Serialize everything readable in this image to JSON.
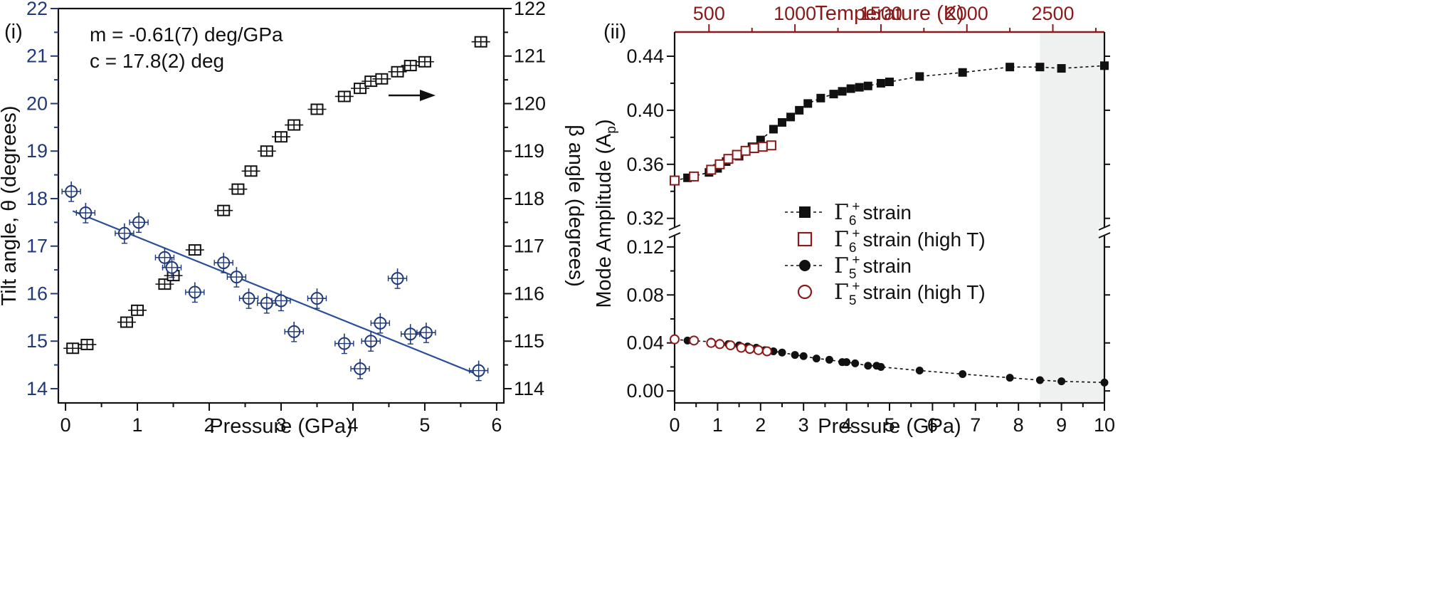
{
  "chart_data": [
    {
      "panel_label": "(i)",
      "type": "scatter",
      "xlabel": "Pressure (GPa)",
      "ylabel": "Tilt angle, θ (degrees)",
      "y2label": "β angle (degrees)",
      "xlim": [
        -0.1,
        6.1
      ],
      "ylim": [
        13.7,
        22
      ],
      "y2lim": [
        113.7,
        122
      ],
      "xticks": [
        "0",
        "1",
        "2",
        "3",
        "4",
        "5",
        "6"
      ],
      "yticks": [
        "14",
        "15",
        "16",
        "17",
        "18",
        "19",
        "20",
        "21",
        "22"
      ],
      "y2ticks": [
        "114",
        "115",
        "116",
        "117",
        "118",
        "119",
        "120",
        "121",
        "122"
      ],
      "annotations": [
        "m = -0.61(7) deg/GPa",
        "c = 17.8(2) deg"
      ],
      "colors": {
        "tilt": "#1f3a7a",
        "beta": "#111111",
        "fit": "#2a4f9a"
      },
      "series": [
        {
          "axis": "left",
          "x": [
            0.08,
            0.28,
            0.82,
            1.02,
            1.38,
            1.48,
            1.8,
            2.2,
            2.38,
            2.55,
            2.8,
            3.0,
            3.18,
            3.5,
            3.88,
            4.1,
            4.25,
            4.38,
            4.62,
            4.8,
            5.02,
            5.75
          ],
          "y": [
            18.15,
            17.7,
            17.27,
            17.5,
            16.76,
            16.55,
            16.03,
            16.65,
            16.35,
            15.9,
            15.8,
            15.85,
            15.2,
            15.9,
            14.95,
            14.42,
            15.0,
            15.38,
            16.32,
            15.15,
            15.18,
            14.38
          ]
        },
        {
          "axis": "right",
          "x": [
            0.1,
            0.3,
            0.85,
            1.0,
            1.38,
            1.5,
            1.8,
            2.2,
            2.4,
            2.58,
            2.8,
            3.0,
            3.18,
            3.5,
            3.88,
            4.1,
            4.25,
            4.4,
            4.62,
            4.8,
            5.0,
            5.78
          ],
          "y": [
            114.85,
            114.93,
            115.4,
            115.65,
            116.2,
            116.38,
            116.92,
            117.75,
            118.2,
            118.58,
            119.0,
            119.3,
            119.55,
            119.88,
            120.15,
            120.32,
            120.47,
            120.52,
            120.67,
            120.8,
            120.88,
            121.3
          ]
        },
        {
          "axis": "left",
          "x": [
            0.1,
            5.78
          ],
          "y": [
            17.74,
            14.27
          ]
        }
      ]
    },
    {
      "panel_label": "(ii)",
      "type": "scatter",
      "xlabel": "Pressure (GPa)",
      "ylabel": "Mode Amplitude (A",
      "ylabel_sub": "p",
      "ylabel_close": ")",
      "top_xlabel": "Temperature (K)",
      "xlim": [
        0,
        10
      ],
      "top_xlim": [
        300,
        2800
      ],
      "ylim_upper": [
        0.313,
        0.45
      ],
      "ylim_lower": [
        -0.01,
        0.13
      ],
      "xticks": [
        "0",
        "1",
        "2",
        "3",
        "4",
        "5",
        "6",
        "7",
        "8",
        "9",
        "10"
      ],
      "top_xticks": [
        "500",
        "1000",
        "1500",
        "2000",
        "2500"
      ],
      "yticks_upper": [
        "0.32",
        "0.36",
        "0.40",
        "0.44"
      ],
      "yticks_lower": [
        "0.00",
        "0.04",
        "0.08",
        "0.12"
      ],
      "shade_range": [
        8.5,
        10
      ],
      "colors": {
        "ambient": "#111111",
        "high_t": "#8b1a1a",
        "shade": "#eef1ef",
        "top_axis": "#8a1a1a"
      },
      "legend": [
        {
          "gamma": "Γ",
          "sub": "6",
          "sup": "+",
          "text": "strain"
        },
        {
          "gamma": "Γ",
          "sub": "6",
          "sup": "+",
          "text": "strain (high T)"
        },
        {
          "gamma": "Γ",
          "sub": "5",
          "sup": "+",
          "text": "strain"
        },
        {
          "gamma": "Γ",
          "sub": "5",
          "sup": "+",
          "text": "strain (high T)"
        }
      ],
      "series": [
        {
          "x": [
            0.0,
            0.3,
            0.8,
            1.0,
            1.2,
            1.5,
            1.8,
            2.0,
            2.3,
            2.5,
            2.7,
            2.9,
            3.1,
            3.4,
            3.7,
            3.9,
            4.1,
            4.3,
            4.5,
            4.8,
            5.0,
            5.7,
            6.7,
            7.8,
            8.5,
            9.0,
            10.0
          ],
          "y": [
            0.348,
            0.35,
            0.354,
            0.357,
            0.362,
            0.366,
            0.373,
            0.378,
            0.386,
            0.391,
            0.395,
            0.4,
            0.405,
            0.409,
            0.412,
            0.414,
            0.416,
            0.417,
            0.418,
            0.42,
            0.421,
            0.425,
            0.428,
            0.432,
            0.432,
            0.431,
            0.433
          ]
        },
        {
          "x": [
            0.0,
            0.45,
            0.85,
            1.05,
            1.25,
            1.45,
            1.65,
            1.85,
            2.05,
            2.25
          ],
          "y": [
            0.348,
            0.351,
            0.356,
            0.36,
            0.364,
            0.367,
            0.37,
            0.372,
            0.373,
            0.374
          ]
        },
        {
          "x": [
            0.0,
            0.3,
            0.85,
            1.05,
            1.25,
            1.5,
            1.7,
            1.9,
            2.1,
            2.3,
            2.5,
            2.8,
            3.0,
            3.3,
            3.6,
            3.9,
            4.0,
            4.2,
            4.5,
            4.7,
            4.8,
            5.7,
            6.7,
            7.8,
            8.5,
            9.0,
            10.0
          ],
          "y": [
            0.043,
            0.042,
            0.041,
            0.04,
            0.039,
            0.038,
            0.037,
            0.036,
            0.034,
            0.033,
            0.032,
            0.03,
            0.029,
            0.027,
            0.026,
            0.024,
            0.024,
            0.023,
            0.021,
            0.021,
            0.02,
            0.017,
            0.014,
            0.011,
            0.009,
            0.008,
            0.007
          ]
        },
        {
          "x": [
            0.0,
            0.45,
            0.85,
            1.05,
            1.3,
            1.55,
            1.75,
            1.95,
            2.15
          ],
          "y": [
            0.043,
            0.042,
            0.04,
            0.039,
            0.038,
            0.036,
            0.035,
            0.034,
            0.033
          ]
        }
      ]
    }
  ]
}
